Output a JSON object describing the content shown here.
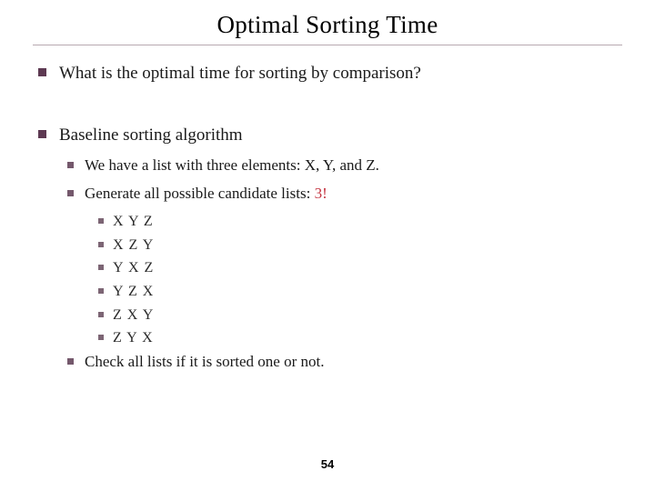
{
  "title": "Optimal Sorting Time",
  "page_number": "54",
  "colors": {
    "bullet_lvl1": "#5d3952",
    "bullet_lvl2": "#74586c",
    "bullet_lvl3": "#7c6574",
    "highlight": "#c4333f",
    "rule": "#b7a9b0",
    "text": "#1a1a1a",
    "background": "#ffffff"
  },
  "typography": {
    "title_fontsize": 27,
    "lvl1_fontsize": 19,
    "lvl2_fontsize": 17,
    "lvl3_fontsize": 16,
    "font_family": "Georgia / Times New Roman (serif)"
  },
  "items": {
    "q": "What is the optimal time for sorting by comparison?",
    "baseline": "Baseline sorting algorithm",
    "have_list": "We have a list with three elements: X, Y, and Z.",
    "generate_prefix": "Generate all possible candidate lists: ",
    "generate_highlight": "3!",
    "perms": [
      "X  Y  Z",
      "X  Z  Y",
      "Y  X  Z",
      "Y  Z  X",
      "Z  X  Y",
      "Z  Y  X"
    ],
    "check": "Check all lists if it is sorted one or not."
  }
}
